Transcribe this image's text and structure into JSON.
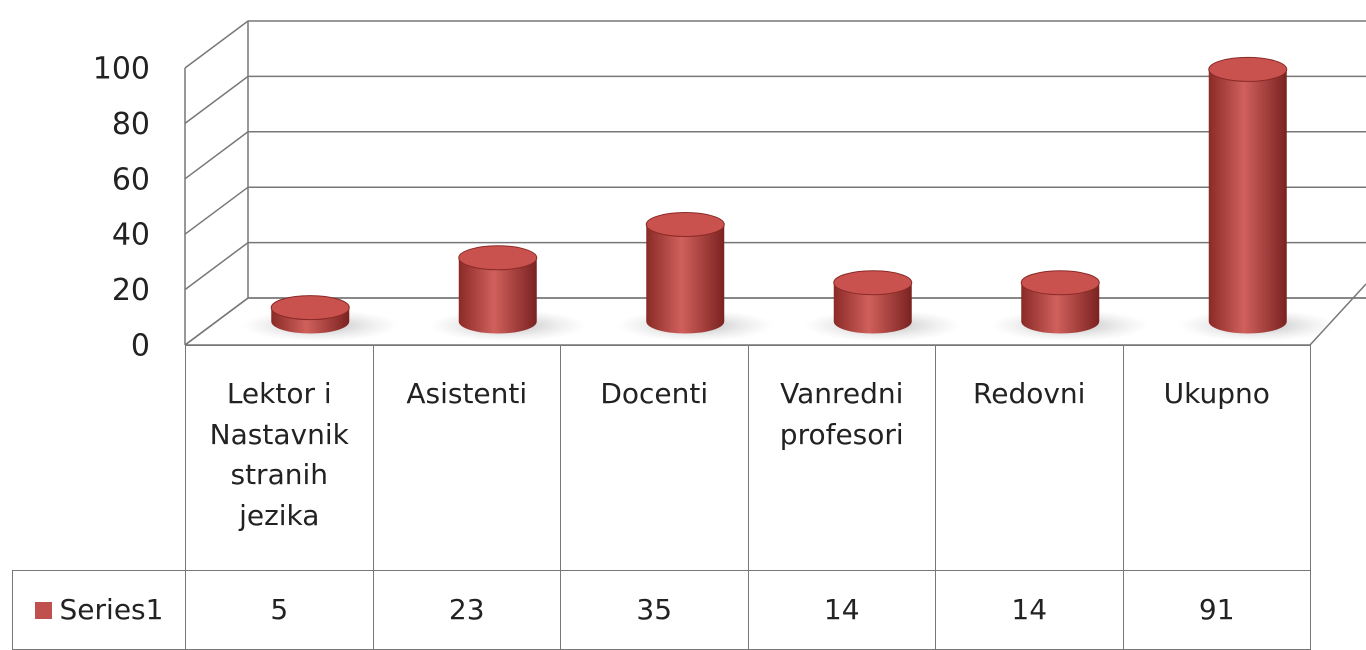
{
  "chart_data": {
    "type": "bar3d",
    "categories": [
      "Lektor i Nastavnik stranih jezika",
      "Asistenti",
      "Docenti",
      "Vanredni profesori",
      "Redovni",
      "Ukupno"
    ],
    "series": [
      {
        "name": "Series1",
        "color": "#c0504d",
        "values": [
          5,
          23,
          35,
          14,
          14,
          91
        ]
      }
    ],
    "ylim": [
      0,
      100
    ],
    "yticks": [
      0,
      20,
      40,
      60,
      80,
      100
    ],
    "grid": true,
    "data_table": true
  }
}
